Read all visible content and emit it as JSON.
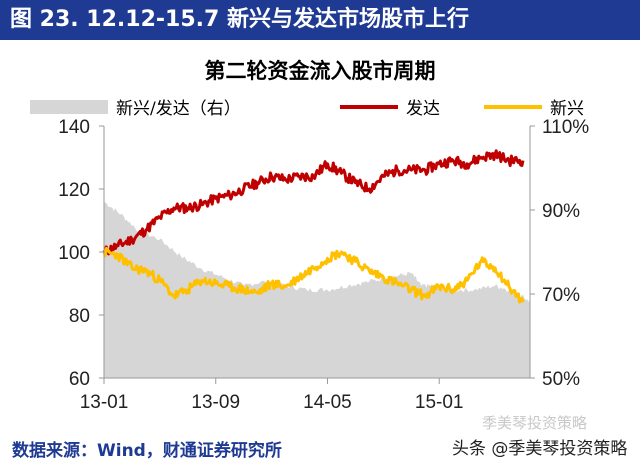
{
  "header": {
    "title": "图 23. 12.12-15.7 新兴与发达市场股市上行"
  },
  "chart_data": {
    "type": "line",
    "title": "第二轮资金流入股市周期",
    "x_ticks": [
      "13-01",
      "13-09",
      "14-05",
      "15-01"
    ],
    "y_left": {
      "ticks": [
        "60",
        "80",
        "100",
        "120",
        "140"
      ],
      "range": [
        60,
        140
      ]
    },
    "y_right": {
      "ticks": [
        "50%",
        "70%",
        "90%",
        "110%"
      ],
      "range": [
        50,
        110
      ]
    },
    "series": [
      {
        "name": "新兴/发达（右）",
        "type": "area",
        "axis": "right",
        "color": "#d6d6d6",
        "points": [
          [
            0,
            92
          ],
          [
            1.2,
            89
          ],
          [
            2.5,
            85
          ],
          [
            4,
            83
          ],
          [
            5.5,
            79
          ],
          [
            7,
            76
          ],
          [
            8.5,
            74
          ],
          [
            10,
            72
          ],
          [
            11.5,
            73
          ],
          [
            13,
            72
          ],
          [
            14.5,
            71
          ],
          [
            16,
            71
          ],
          [
            17.5,
            72
          ],
          [
            19,
            73
          ],
          [
            20.5,
            74
          ],
          [
            22,
            75
          ],
          [
            22.7,
            72
          ],
          [
            23.5,
            72
          ],
          [
            25,
            71
          ],
          [
            26.5,
            71
          ],
          [
            28,
            72
          ],
          [
            29,
            71
          ],
          [
            30,
            69.5
          ],
          [
            30.5,
            68
          ]
        ]
      },
      {
        "name": "发达",
        "type": "line",
        "axis": "left",
        "color": "#c00000",
        "points": [
          [
            0,
            100
          ],
          [
            1,
            102
          ],
          [
            2,
            104
          ],
          [
            3,
            107
          ],
          [
            4,
            111
          ],
          [
            5,
            114
          ],
          [
            6,
            114
          ],
          [
            7,
            115
          ],
          [
            8,
            117
          ],
          [
            9,
            118
          ],
          [
            10,
            120
          ],
          [
            11,
            122
          ],
          [
            12,
            124
          ],
          [
            13,
            123
          ],
          [
            14,
            124
          ],
          [
            15,
            124
          ],
          [
            16,
            128
          ],
          [
            17,
            125
          ],
          [
            18,
            122
          ],
          [
            19,
            120
          ],
          [
            20,
            124
          ],
          [
            21,
            126
          ],
          [
            22,
            126
          ],
          [
            23,
            126
          ],
          [
            24,
            128
          ],
          [
            25,
            129
          ],
          [
            26,
            128
          ],
          [
            27,
            130
          ],
          [
            28,
            131
          ],
          [
            29,
            129
          ],
          [
            30,
            129
          ]
        ]
      },
      {
        "name": "新兴",
        "type": "line",
        "axis": "left",
        "color": "#ffc000",
        "points": [
          [
            0,
            100
          ],
          [
            1,
            99
          ],
          [
            2,
            95
          ],
          [
            3,
            94
          ],
          [
            4,
            91
          ],
          [
            5,
            86
          ],
          [
            6,
            88
          ],
          [
            7,
            91
          ],
          [
            8,
            90
          ],
          [
            9,
            89
          ],
          [
            10,
            88
          ],
          [
            11,
            87
          ],
          [
            12,
            90
          ],
          [
            13,
            89
          ],
          [
            14,
            92
          ],
          [
            15,
            95
          ],
          [
            16,
            98
          ],
          [
            17,
            100
          ],
          [
            18,
            97
          ],
          [
            19,
            94
          ],
          [
            20,
            92
          ],
          [
            21,
            90
          ],
          [
            22,
            88
          ],
          [
            23,
            86
          ],
          [
            24,
            89
          ],
          [
            25,
            88
          ],
          [
            26,
            91
          ],
          [
            27,
            97
          ],
          [
            28,
            95
          ],
          [
            29,
            89
          ],
          [
            30,
            84
          ]
        ]
      }
    ]
  },
  "legend": [
    {
      "label": "新兴/发达（右）",
      "color": "#d6d6d6"
    },
    {
      "label": "发达",
      "color": "#c00000"
    },
    {
      "label": "新兴",
      "color": "#ffc000"
    }
  ],
  "footer": {
    "source": "数据来源：Wind，财通证券研究所",
    "watermark_top": "季美琴投资策略",
    "watermark": "头条 @季美琴投资策略"
  }
}
